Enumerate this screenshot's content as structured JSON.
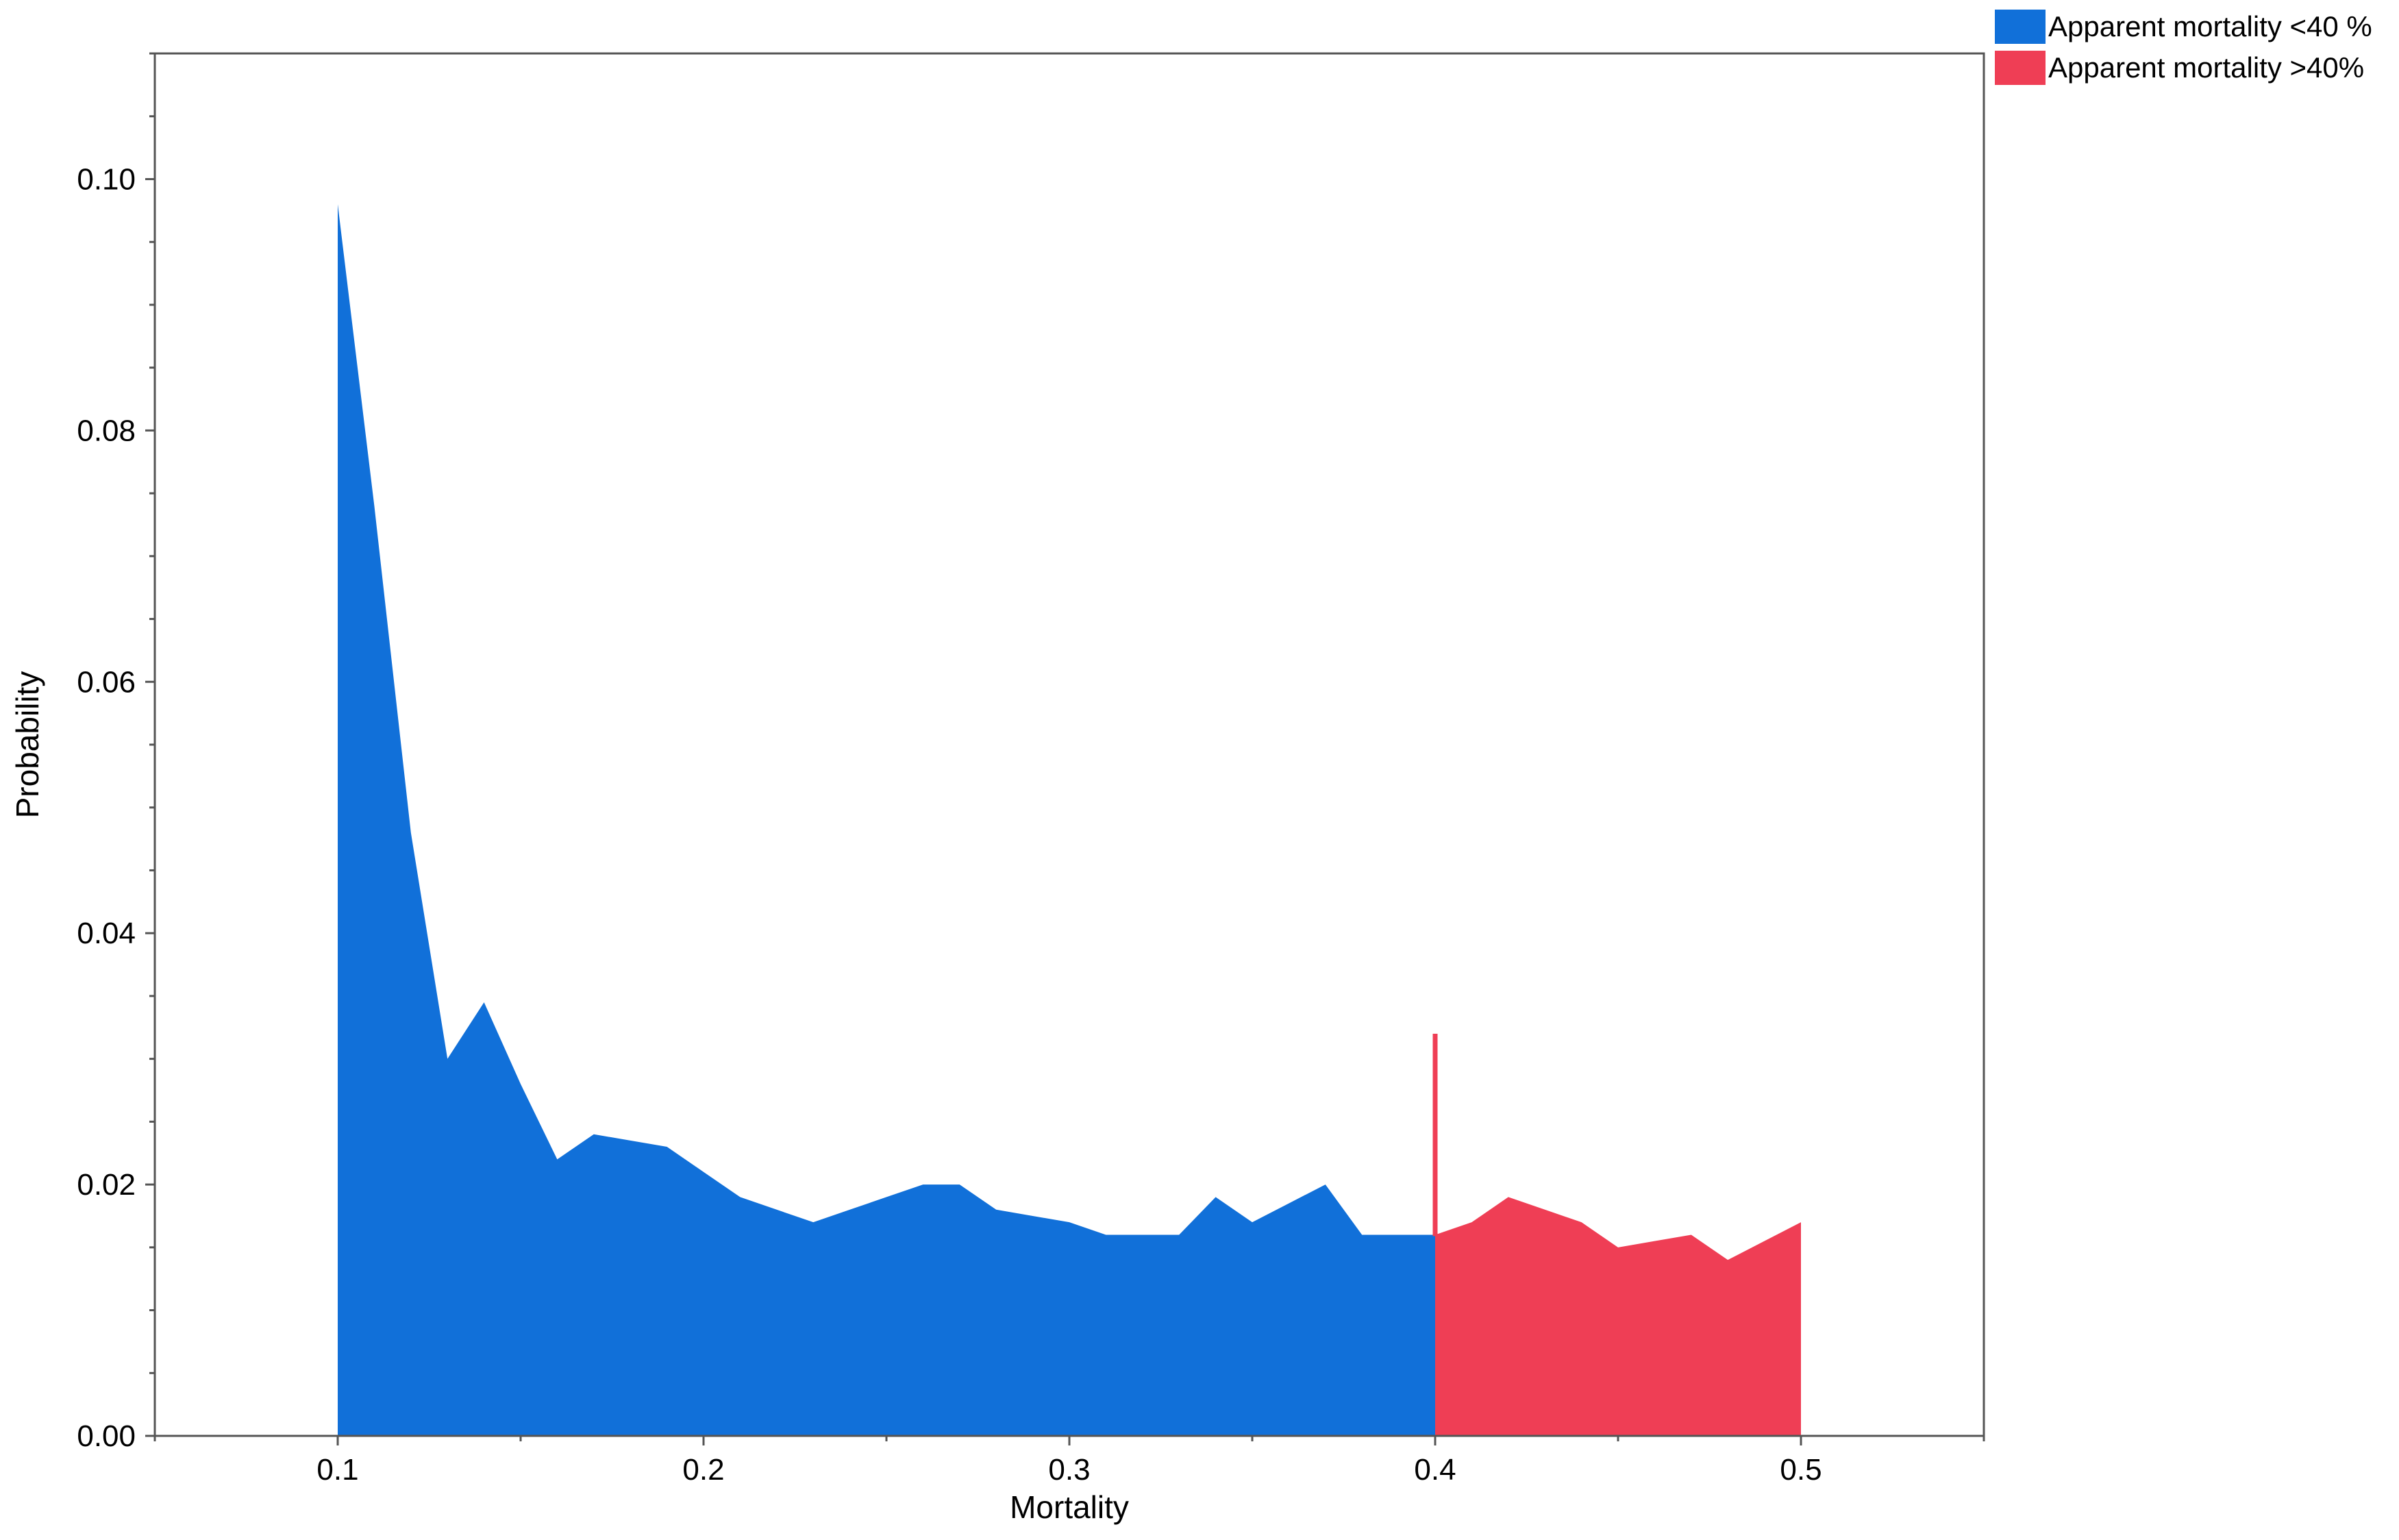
{
  "chart_data": {
    "type": "area",
    "xlabel": "Mortality",
    "ylabel": "Probability",
    "xlim": [
      0.05,
      0.55
    ],
    "ylim": [
      0.0,
      0.11
    ],
    "x_ticks": [
      0.1,
      0.2,
      0.3,
      0.4,
      0.5
    ],
    "x_tick_labels": [
      "0.1",
      "0.2",
      "0.3",
      "0.4",
      "0.5"
    ],
    "y_ticks": [
      0.0,
      0.02,
      0.04,
      0.06,
      0.08,
      0.1
    ],
    "y_tick_labels": [
      "0.00",
      "0.02",
      "0.04",
      "0.06",
      "0.08",
      "0.10"
    ],
    "legend_position": "outside top-right",
    "threshold": 0.4,
    "threshold_line_top": 0.032,
    "series": [
      {
        "name": "Apparent mortality <40 %",
        "color": "#1170d9",
        "x": [
          0.1,
          0.11,
          0.12,
          0.13,
          0.14,
          0.15,
          0.16,
          0.17,
          0.18,
          0.19,
          0.2,
          0.21,
          0.22,
          0.23,
          0.24,
          0.25,
          0.26,
          0.27,
          0.28,
          0.29,
          0.3,
          0.31,
          0.32,
          0.33,
          0.34,
          0.35,
          0.36,
          0.37,
          0.38,
          0.39,
          0.4
        ],
        "y": [
          0.098,
          0.074,
          0.048,
          0.03,
          0.0345,
          0.028,
          0.022,
          0.024,
          0.0235,
          0.023,
          0.021,
          0.019,
          0.018,
          0.017,
          0.018,
          0.019,
          0.02,
          0.02,
          0.018,
          0.0175,
          0.017,
          0.016,
          0.016,
          0.016,
          0.019,
          0.017,
          0.0185,
          0.02,
          0.016,
          0.016,
          0.016
        ]
      },
      {
        "name": "Apparent mortality >40%",
        "color": "#ef3e55",
        "x": [
          0.4,
          0.41,
          0.42,
          0.43,
          0.44,
          0.45,
          0.46,
          0.47,
          0.48,
          0.49,
          0.5
        ],
        "y": [
          0.016,
          0.017,
          0.019,
          0.018,
          0.017,
          0.015,
          0.0155,
          0.016,
          0.014,
          0.0155,
          0.017
        ]
      }
    ]
  }
}
